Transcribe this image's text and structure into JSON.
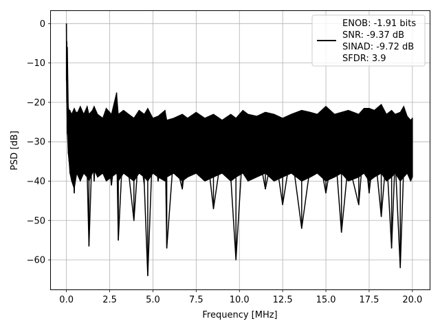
{
  "chart_data": {
    "type": "line",
    "title": "",
    "xlabel": "Frequency [MHz]",
    "ylabel": "PSD [dB]",
    "xlim": [
      -0.9,
      21.0
    ],
    "ylim": [
      -67.5,
      3.2
    ],
    "grid": true,
    "legend_position": "top-right",
    "x_ticks": [
      0.0,
      2.5,
      5.0,
      7.5,
      10.0,
      12.5,
      15.0,
      17.5,
      20.0
    ],
    "x_tick_labels": [
      "0.0",
      "2.5",
      "5.0",
      "7.5",
      "10.0",
      "12.5",
      "15.0",
      "17.5",
      "20.0"
    ],
    "y_ticks": [
      0,
      -10,
      -20,
      -30,
      -40,
      -50,
      -60
    ],
    "y_tick_labels": [
      "0",
      "−10",
      "−20",
      "−30",
      "−40",
      "−50",
      "−60"
    ],
    "series": [
      {
        "name": "ENOB: -1.91 bits\nSNR: -9.37 dB\nSINAD: -9.72 dB\nSFDR: 3.9",
        "color": "#000000",
        "x": [
          0.0,
          0.02,
          0.05,
          0.1,
          0.15,
          0.2,
          0.3,
          0.45,
          0.6,
          0.8,
          1.0,
          1.2,
          1.3,
          1.5,
          1.6,
          1.8,
          2.1,
          2.3,
          2.6,
          2.9,
          3.0,
          3.3,
          3.6,
          3.9,
          4.2,
          4.5,
          4.7,
          5.0,
          5.3,
          5.7,
          5.8,
          6.2,
          6.7,
          7.0,
          7.5,
          8.0,
          8.5,
          9.0,
          9.5,
          9.8,
          10.2,
          10.5,
          11.0,
          11.5,
          12.0,
          12.5,
          13.0,
          13.6,
          14.1,
          14.5,
          15.0,
          15.5,
          15.9,
          16.3,
          16.9,
          17.2,
          17.5,
          17.8,
          18.2,
          18.5,
          18.8,
          19.0,
          19.3,
          19.5,
          19.7,
          19.9,
          20.0
        ],
        "y": [
          0.0,
          -14.5,
          -6.0,
          -22.0,
          -26.0,
          -32.5,
          -28.0,
          -43.0,
          -22.5,
          -35.0,
          -28.0,
          -38.0,
          -56.5,
          -30.0,
          -40.0,
          -25.0,
          -37.0,
          -29.0,
          -41.0,
          -30.0,
          -55.0,
          -28.0,
          -38.0,
          -50.0,
          -31.0,
          -41.0,
          -64.0,
          -29.0,
          -40.0,
          -28.0,
          -57.0,
          -33.0,
          -42.0,
          -30.0,
          -38.0,
          -28.0,
          -47.0,
          -32.0,
          -39.0,
          -60.0,
          -31.0,
          -40.0,
          -30.0,
          -42.0,
          -31.0,
          -46.0,
          -32.0,
          -52.0,
          -36.0,
          -31.0,
          -43.0,
          -30.0,
          -53.0,
          -35.0,
          -46.0,
          -30.0,
          -43.0,
          -31.0,
          -49.0,
          -33.0,
          -57.0,
          -34.0,
          -62.0,
          -36.0,
          -30.0,
          -38.0,
          -39.0
        ],
        "band_upper": [
          0.0,
          -4.5,
          -15.0,
          -21.0,
          -22.0,
          -22.0,
          -23.0,
          -21.5,
          -23.0,
          -21.0,
          -23.0,
          -21.0,
          -23.0,
          -22.0,
          -21.0,
          -23.0,
          -24.0,
          -21.5,
          -23.0,
          -17.5,
          -23.0,
          -22.0,
          -23.0,
          -24.0,
          -22.0,
          -23.0,
          -21.5,
          -24.0,
          -23.5,
          -22.0,
          -24.5,
          -24.0,
          -23.0,
          -24.0,
          -22.5,
          -24.0,
          -23.0,
          -24.5,
          -23.0,
          -24.0,
          -22.0,
          -23.0,
          -23.5,
          -22.5,
          -23.0,
          -24.0,
          -23.0,
          -22.0,
          -22.5,
          -23.0,
          -21.0,
          -23.0,
          -22.5,
          -22.0,
          -23.0,
          -21.5,
          -21.5,
          -22.0,
          -20.5,
          -23.0,
          -22.0,
          -23.0,
          -22.5,
          -21.0,
          -23.5,
          -24.5,
          -24.0
        ],
        "band_lower": [
          -14.5,
          -20.0,
          -28.0,
          -33.0,
          -35.0,
          -38.0,
          -40.0,
          -42.0,
          -38.0,
          -40.0,
          -38.0,
          -39.0,
          -40.0,
          -38.0,
          -37.0,
          -39.0,
          -38.0,
          -40.0,
          -39.0,
          -38.0,
          -40.0,
          -38.0,
          -39.0,
          -40.0,
          -38.0,
          -39.0,
          -40.0,
          -38.0,
          -39.0,
          -40.0,
          -39.0,
          -38.0,
          -40.0,
          -39.0,
          -38.0,
          -40.0,
          -39.0,
          -38.0,
          -40.0,
          -39.0,
          -38.0,
          -40.0,
          -39.0,
          -38.0,
          -40.0,
          -39.0,
          -38.0,
          -40.0,
          -39.0,
          -38.0,
          -40.0,
          -39.0,
          -38.0,
          -40.0,
          -39.0,
          -38.0,
          -40.0,
          -39.0,
          -38.0,
          -40.0,
          -39.0,
          -38.0,
          -40.0,
          -39.0,
          -38.0,
          -40.0,
          -39.0
        ]
      }
    ]
  }
}
